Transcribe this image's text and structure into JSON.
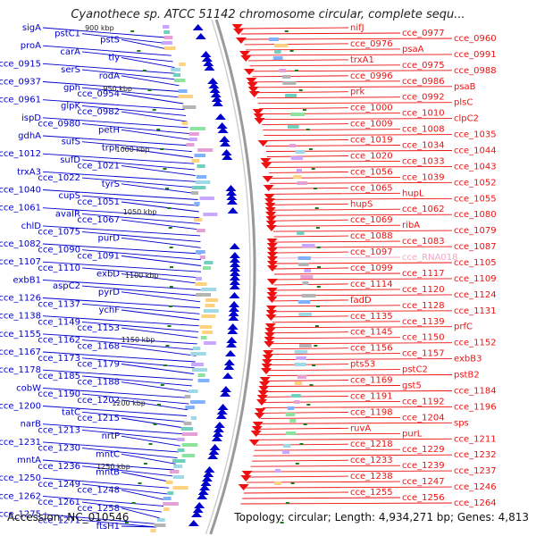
{
  "title": "Cyanothece sp. ATCC 51142 chromosome circular, complete sequ...",
  "footer": {
    "accession": "Accession: NC_010546",
    "topology": "Topology: circular; Length: 4,934,271 bp; Genes: 4,813"
  },
  "colors": {
    "reverse_strand": "#0000cc",
    "forward_strand": "#ee1111",
    "backbone": "#9a9a9a",
    "tick": "#1a7a1a",
    "rna": "#f2a6c8"
  },
  "kbp_ticks": [
    "900 kbp",
    "950 kbp",
    "1000 kbp",
    "1050 kbp",
    "1100 kbp",
    "1150 kbp",
    "1200 kbp",
    "1250 kbp"
  ],
  "left_labels": [
    "sigA",
    "pstC1",
    "pstS",
    "proA",
    "carA",
    "tly",
    "cce_0915",
    "serS",
    "rodA",
    "cce_0937",
    "gph",
    "cce_0954",
    "cce_0961",
    "glpK",
    "cce_0982",
    "ispD",
    "cce_0980",
    "petH",
    "gdhA",
    "sufS",
    "trpF",
    "cce_1012",
    "sufD",
    "cce_1021",
    "trxA3",
    "cce_1022",
    "tyrS",
    "cce_1040",
    "cupS",
    "cce_1051",
    "cce_1061",
    "avaIR",
    "cce_1067",
    "chlD",
    "cce_1075",
    "purD",
    "cce_1082",
    "cce_1090",
    "cce_1091",
    "cce_1107",
    "cce_1110",
    "exbD",
    "exbB1",
    "aspC2",
    "pyrD",
    "cce_1126",
    "cce_1137",
    "ychF",
    "cce_1138",
    "cce_1149",
    "cce_1153",
    "cce_1155",
    "cce_1162",
    "cce_1168",
    "cce_1167",
    "cce_1173",
    "cce_1179",
    "cce_1178",
    "cce_1185",
    "cce_1188",
    "cobW",
    "cce_1190",
    "cce_1202",
    "cce_1200",
    "tatC",
    "cce_1215",
    "narB",
    "cce_1213",
    "nrtP",
    "cce_1231",
    "cce_1230",
    "mntC",
    "mntA",
    "cce_1236",
    "mntB",
    "cce_1250",
    "cce_1249",
    "cce_1248",
    "cce_1262",
    "cce_1261",
    "cce_1258",
    "cce_1275",
    "cce_1271",
    "ftsH1"
  ],
  "right_labels": [
    "nifJ",
    "cce_0977",
    "cce_0960",
    "cce_0976",
    "psaA",
    "cce_0991",
    "trxA1",
    "cce_0975",
    "cce_0988",
    "cce_0996",
    "cce_0986",
    "psaB",
    "prk",
    "cce_0992",
    "plsC",
    "cce_1000",
    "cce_1010",
    "clpC2",
    "cce_1009",
    "cce_1008",
    "cce_1035",
    "cce_1019",
    "cce_1034",
    "cce_1044",
    "cce_1020",
    "cce_1033",
    "cce_1043",
    "cce_1056",
    "cce_1039",
    "cce_1052",
    "cce_1065",
    "hupL",
    "cce_1055",
    "hupS",
    "cce_1062",
    "cce_1080",
    "cce_1069",
    "ribA",
    "cce_1079",
    "cce_1088",
    "cce_1083",
    "cce_1087",
    "cce_1097",
    "cce_RNA018",
    "cce_1105",
    "cce_1099",
    "cce_1117",
    "cce_1109",
    "cce_1114",
    "cce_1120",
    "cce_1124",
    "fadD",
    "cce_1128",
    "cce_1131",
    "cce_1135",
    "cce_1139",
    "prfC",
    "cce_1145",
    "cce_1150",
    "cce_1152",
    "cce_1156",
    "cce_1157",
    "exbB3",
    "pts53",
    "pstC2",
    "pstB2",
    "cce_1169",
    "gst5",
    "cce_1184",
    "cce_1191",
    "cce_1192",
    "cce_1196",
    "cce_1198",
    "cce_1204",
    "sps",
    "ruvA",
    "purL",
    "cce_1211",
    "cce_1218",
    "cce_1229",
    "cce_1232",
    "cce_1233",
    "cce_1239",
    "cce_1237",
    "cce_1238",
    "cce_1247",
    "cce_1246",
    "cce_1255",
    "cce_1256",
    "cce_1264"
  ]
}
